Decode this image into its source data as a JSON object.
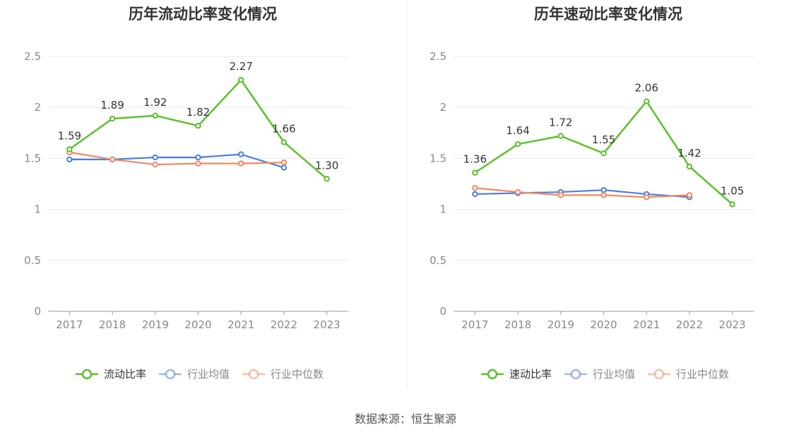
{
  "source": "数据来源：恒生聚源",
  "chart_data": [
    {
      "type": "line",
      "title": "历年流动比率变化情况",
      "categories": [
        "2017",
        "2018",
        "2019",
        "2020",
        "2021",
        "2022",
        "2023"
      ],
      "ylim": [
        0,
        2.5
      ],
      "yticks": [
        "0",
        "0.5",
        "1",
        "1.5",
        "2",
        "2.5"
      ],
      "grid": true,
      "legend_position": "bottom",
      "series": [
        {
          "name": "流动比率",
          "color": "#5cc02b",
          "values": [
            1.59,
            1.89,
            1.92,
            1.82,
            2.27,
            1.66,
            1.3
          ],
          "labels": [
            "1.59",
            "1.89",
            "1.92",
            "1.82",
            "2.27",
            "1.66",
            "1.30"
          ]
        },
        {
          "name": "行业均值",
          "color": "#4a7ee0",
          "values": [
            1.49,
            1.49,
            1.51,
            1.51,
            1.54,
            1.41,
            null
          ]
        },
        {
          "name": "行业中位数",
          "color": "#f2885f",
          "values": [
            1.56,
            1.49,
            1.44,
            1.45,
            1.45,
            1.46,
            null
          ]
        }
      ]
    },
    {
      "type": "line",
      "title": "历年速动比率变化情况",
      "categories": [
        "2017",
        "2018",
        "2019",
        "2020",
        "2021",
        "2022",
        "2023"
      ],
      "ylim": [
        0,
        2.5
      ],
      "yticks": [
        "0",
        "0.5",
        "1",
        "1.5",
        "2",
        "2.5"
      ],
      "grid": true,
      "legend_position": "bottom",
      "series": [
        {
          "name": "速动比率",
          "color": "#5cc02b",
          "values": [
            1.36,
            1.64,
            1.72,
            1.55,
            2.06,
            1.42,
            1.05
          ],
          "labels": [
            "1.36",
            "1.64",
            "1.72",
            "1.55",
            "2.06",
            "1.42",
            "1.05"
          ]
        },
        {
          "name": "行业均值",
          "color": "#4a7ee0",
          "values": [
            1.15,
            1.16,
            1.17,
            1.19,
            1.15,
            1.12,
            null
          ]
        },
        {
          "name": "行业中位数",
          "color": "#f2885f",
          "values": [
            1.21,
            1.17,
            1.14,
            1.14,
            1.12,
            1.14,
            null
          ]
        }
      ]
    }
  ]
}
